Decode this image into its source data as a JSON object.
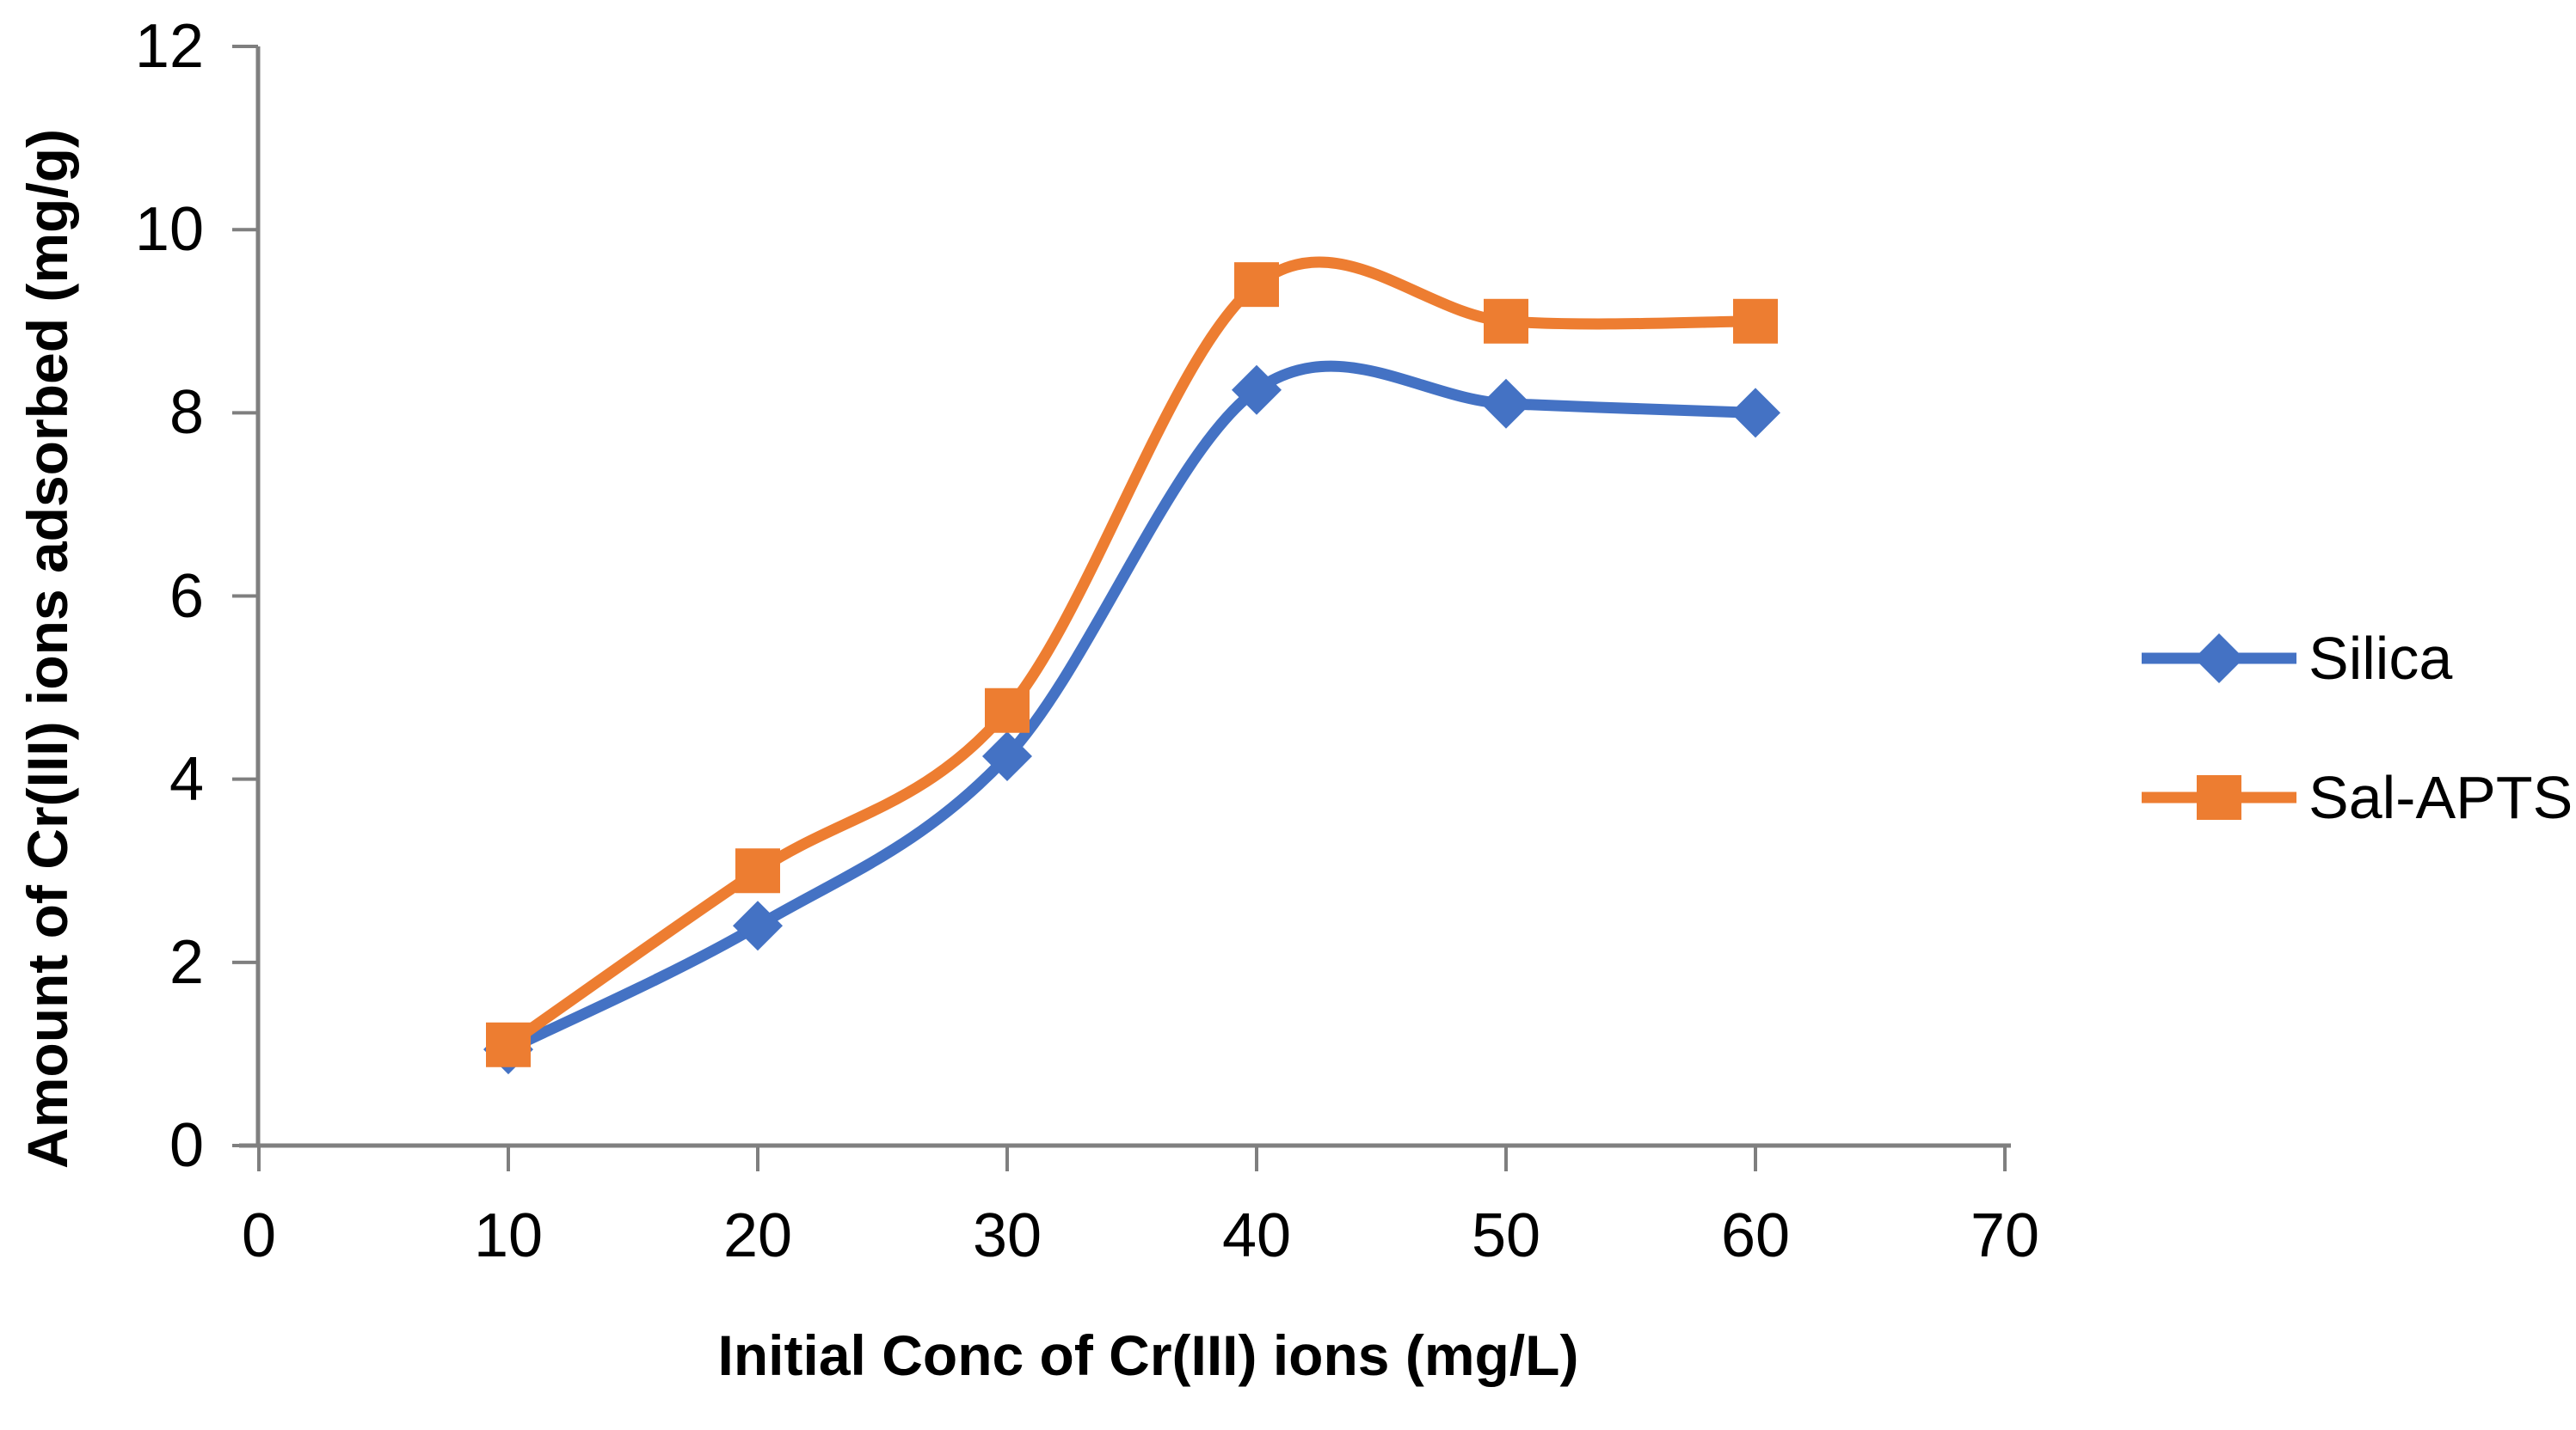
{
  "chart_data": {
    "type": "line",
    "title": "",
    "xlabel": "Initial Conc of Cr(III) ions (mg/L)",
    "ylabel": "Amount of Cr(III) ions adsorbed (mg/g)",
    "x": [
      10,
      20,
      30,
      40,
      50,
      60
    ],
    "series": [
      {
        "name": "Silica",
        "color": "#4472C4",
        "marker": "diamond",
        "values": [
          1.05,
          2.4,
          4.25,
          8.25,
          8.1,
          8.0
        ]
      },
      {
        "name": "Sal-APTS",
        "color": "#ED7D31",
        "marker": "square",
        "values": [
          1.1,
          3.0,
          4.75,
          9.4,
          9.0,
          9.0
        ]
      }
    ],
    "xlim": [
      0,
      70
    ],
    "ylim": [
      0,
      12
    ],
    "x_ticks": [
      0,
      10,
      20,
      30,
      40,
      50,
      60,
      70
    ],
    "y_ticks": [
      0,
      2,
      4,
      6,
      8,
      10,
      12
    ],
    "grid": false,
    "smooth": true,
    "legend_position": "right",
    "axis_color": "#7F7F7F",
    "text_color": "#000000"
  }
}
